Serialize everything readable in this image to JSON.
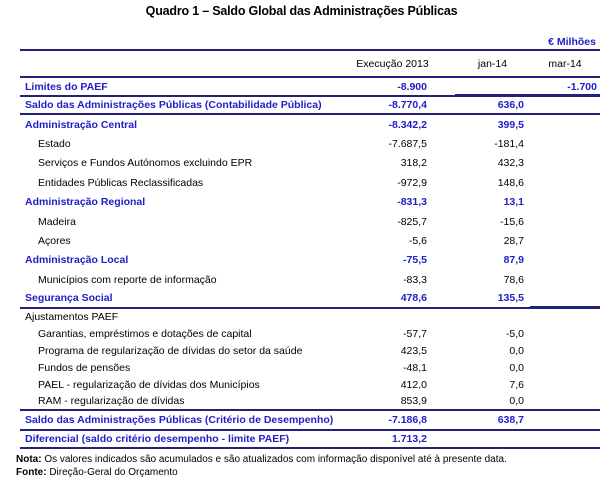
{
  "title": "Quadro 1 – Saldo Global das Administrações Públicas",
  "unit_label": "€ Milhões",
  "colors": {
    "accent_blue": "#2020C8",
    "rule_navy": "#22227B"
  },
  "columns": {
    "c1": "Execução 2013",
    "c2": "jan-14",
    "c3": "mar-14"
  },
  "table": {
    "rows": [
      {
        "label": "Limites do PAEF",
        "exec": "-8.900",
        "jan": "",
        "mar": "-1.700"
      },
      {
        "label": "Saldo das Administrações Públicas (Contabilidade Pública)",
        "exec": "-8.770,4",
        "jan": "636,0",
        "mar": ""
      },
      {
        "label": "Administração Central",
        "exec": "-8.342,2",
        "jan": "399,5",
        "mar": ""
      },
      {
        "label": "Estado",
        "exec": "-7.687,5",
        "jan": "-181,4",
        "mar": ""
      },
      {
        "label": "Serviços e Fundos Autónomos excluindo EPR",
        "exec": "318,2",
        "jan": "432,3",
        "mar": ""
      },
      {
        "label": "Entidades Públicas Reclassificadas",
        "exec": "-972,9",
        "jan": "148,6",
        "mar": ""
      },
      {
        "label": "Administração Regional",
        "exec": "-831,3",
        "jan": "13,1",
        "mar": ""
      },
      {
        "label": "Madeira",
        "exec": "-825,7",
        "jan": "-15,6",
        "mar": ""
      },
      {
        "label": "Açores",
        "exec": "-5,6",
        "jan": "28,7",
        "mar": ""
      },
      {
        "label": "Administração Local",
        "exec": "-75,5",
        "jan": "87,9",
        "mar": ""
      },
      {
        "label": "Municípios com reporte de informação",
        "exec": "-83,3",
        "jan": "78,6",
        "mar": ""
      },
      {
        "label": "Segurança Social",
        "exec": "478,6",
        "jan": "135,5",
        "mar": ""
      },
      {
        "label": "Ajustamentos PAEF",
        "exec": "",
        "jan": "",
        "mar": ""
      },
      {
        "label": "Garantias,  empréstimos e dotações de capital",
        "exec": "-57,7",
        "jan": "-5,0",
        "mar": ""
      },
      {
        "label": "Programa de regularização de dívidas do setor da saúde",
        "exec": "423,5",
        "jan": "0,0",
        "mar": ""
      },
      {
        "label": "Fundos de pensões",
        "exec": "-48,1",
        "jan": "0,0",
        "mar": ""
      },
      {
        "label": "PAEL - regularização de dívidas dos Municípios",
        "exec": "412,0",
        "jan": "7,6",
        "mar": ""
      },
      {
        "label": "RAM - regularização de dívidas",
        "exec": "853,9",
        "jan": "0,0",
        "mar": ""
      },
      {
        "label": "Saldo das Administrações Públicas (Critério de Desempenho)",
        "exec": "-7.186,8",
        "jan": "638,7",
        "mar": ""
      },
      {
        "label": "Diferencial (saldo critério desempenho - limite PAEF)",
        "exec": "1.713,2",
        "jan": "",
        "mar": ""
      }
    ]
  },
  "footnotes": {
    "nota_label": "Nota:",
    "nota_text": " Os valores indicados são acumulados e são atualizados com informação disponível até à presente data.",
    "fonte_label": "Fonte:",
    "fonte_text": " Direção-Geral do Orçamento"
  }
}
